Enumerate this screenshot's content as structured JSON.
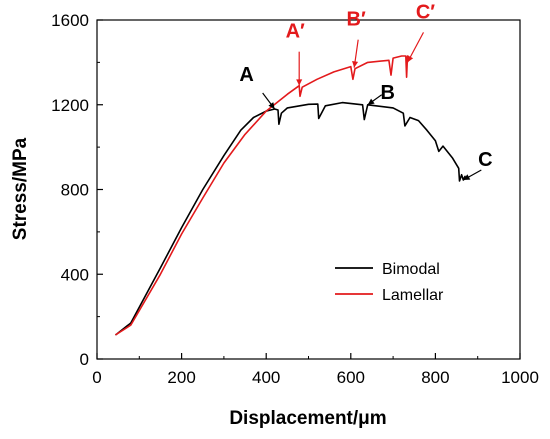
{
  "chart_data": {
    "type": "line",
    "xlabel": "Displacement/μm",
    "ylabel": "Stress/MPa",
    "xlim": [
      0,
      1000
    ],
    "ylim": [
      0,
      1600
    ],
    "xticks": [
      0,
      200,
      400,
      600,
      800,
      1000
    ],
    "yticks": [
      0,
      400,
      800,
      1200,
      1600
    ],
    "grid": false,
    "legend_position": "lower-right",
    "colors": {
      "Bimodal": "#000000",
      "Lamellar": "#e31a1c"
    },
    "series": [
      {
        "name": "Bimodal",
        "color": "#000000",
        "points": [
          [
            45,
            115
          ],
          [
            80,
            170
          ],
          [
            150,
            430
          ],
          [
            200,
            620
          ],
          [
            250,
            800
          ],
          [
            300,
            960
          ],
          [
            340,
            1080
          ],
          [
            370,
            1140
          ],
          [
            400,
            1170
          ],
          [
            420,
            1180
          ],
          [
            428,
            1175
          ],
          [
            430,
            1108
          ],
          [
            436,
            1160
          ],
          [
            450,
            1185
          ],
          [
            500,
            1202
          ],
          [
            522,
            1203
          ],
          [
            524,
            1135
          ],
          [
            540,
            1195
          ],
          [
            580,
            1210
          ],
          [
            628,
            1200
          ],
          [
            632,
            1130
          ],
          [
            640,
            1200
          ],
          [
            700,
            1185
          ],
          [
            724,
            1160
          ],
          [
            728,
            1100
          ],
          [
            740,
            1140
          ],
          [
            760,
            1125
          ],
          [
            780,
            1080
          ],
          [
            800,
            1030
          ],
          [
            808,
            980
          ],
          [
            818,
            1005
          ],
          [
            840,
            950
          ],
          [
            855,
            900
          ],
          [
            857,
            840
          ],
          [
            862,
            870
          ],
          [
            866,
            845
          ],
          [
            870,
            862
          ]
        ]
      },
      {
        "name": "Lamellar",
        "color": "#e31a1c",
        "points": [
          [
            45,
            115
          ],
          [
            80,
            160
          ],
          [
            150,
            400
          ],
          [
            200,
            590
          ],
          [
            250,
            760
          ],
          [
            300,
            925
          ],
          [
            350,
            1060
          ],
          [
            400,
            1170
          ],
          [
            450,
            1250
          ],
          [
            478,
            1290
          ],
          [
            480,
            1240
          ],
          [
            485,
            1283
          ],
          [
            520,
            1320
          ],
          [
            560,
            1355
          ],
          [
            600,
            1380
          ],
          [
            605,
            1320
          ],
          [
            610,
            1370
          ],
          [
            640,
            1400
          ],
          [
            690,
            1410
          ],
          [
            695,
            1340
          ],
          [
            700,
            1420
          ],
          [
            720,
            1430
          ],
          [
            730,
            1430
          ],
          [
            732,
            1330
          ],
          [
            734,
            1430
          ],
          [
            735,
            1430
          ]
        ]
      }
    ],
    "annotations": [
      {
        "label": "A",
        "color": "black",
        "x": 420,
        "y": 1180
      },
      {
        "label": "B",
        "color": "black",
        "x": 640,
        "y": 1200
      },
      {
        "label": "C",
        "color": "black",
        "x": 866,
        "y": 845
      },
      {
        "label": "A′",
        "color": "red",
        "x": 478,
        "y": 1290
      },
      {
        "label": "B′",
        "color": "red",
        "x": 608,
        "y": 1375
      },
      {
        "label": "C′",
        "color": "red",
        "x": 734,
        "y": 1400
      }
    ]
  }
}
